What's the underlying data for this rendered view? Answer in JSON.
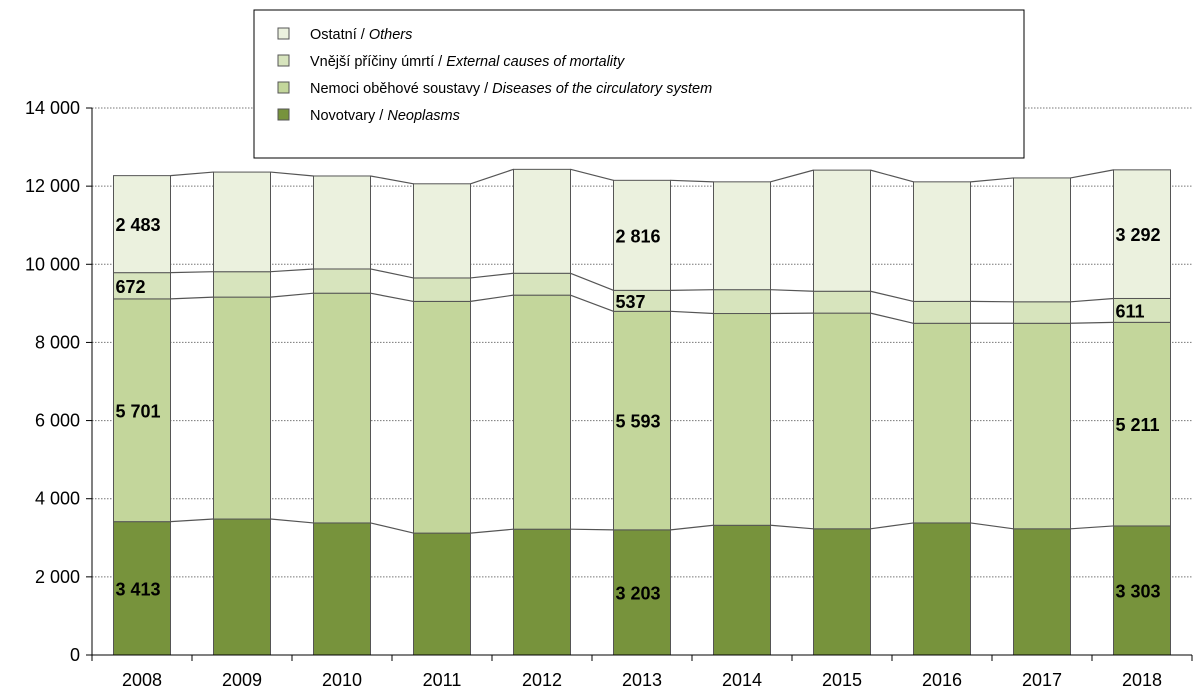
{
  "chart_data": {
    "type": "bar",
    "stacked": true,
    "categories": [
      "2008",
      "2009",
      "2010",
      "2011",
      "2012",
      "2013",
      "2014",
      "2015",
      "2016",
      "2017",
      "2018"
    ],
    "series": [
      {
        "name_cz": "Novotvary",
        "name_en": "Neoplasms",
        "color": "#77933c",
        "values": [
          3413,
          3480,
          3380,
          3120,
          3220,
          3203,
          3320,
          3230,
          3380,
          3230,
          3303
        ],
        "labels": {
          "0": "3 413",
          "5": "3 203",
          "10": "3 303"
        }
      },
      {
        "name_cz": "Nemoci oběhové soustavy",
        "name_en": "Diseases of the circulatory system",
        "color": "#c3d69b",
        "values": [
          5701,
          5680,
          5880,
          5930,
          5990,
          5593,
          5420,
          5520,
          5110,
          5260,
          5211
        ],
        "labels": {
          "0": "5 701",
          "5": "5 593",
          "10": "5 211"
        }
      },
      {
        "name_cz": "Vnější příčiny úmrtí",
        "name_en": "External causes of mortality",
        "color": "#d7e4bd",
        "values": [
          672,
          650,
          620,
          600,
          560,
          537,
          610,
          560,
          560,
          550,
          611
        ],
        "labels": {
          "0": "672",
          "5": "537",
          "10": "611"
        }
      },
      {
        "name_cz": "Ostatní",
        "name_en": "Others",
        "color": "#ebf1de",
        "values": [
          2483,
          2550,
          2380,
          2410,
          2660,
          2816,
          2760,
          3100,
          3060,
          3170,
          3292
        ],
        "labels": {
          "0": "2 483",
          "5": "2 816",
          "10": "3 292"
        }
      }
    ],
    "ylim": [
      0,
      14000
    ],
    "yticks": [
      0,
      2000,
      4000,
      6000,
      8000,
      10000,
      12000,
      14000
    ],
    "ytick_labels": [
      "0",
      "2 000",
      "4 000",
      "6 000",
      "8 000",
      "10 000",
      "12 000",
      "14 000"
    ],
    "grid": true,
    "legend_position": "top-center",
    "legend_order": [
      3,
      2,
      1,
      0
    ]
  }
}
